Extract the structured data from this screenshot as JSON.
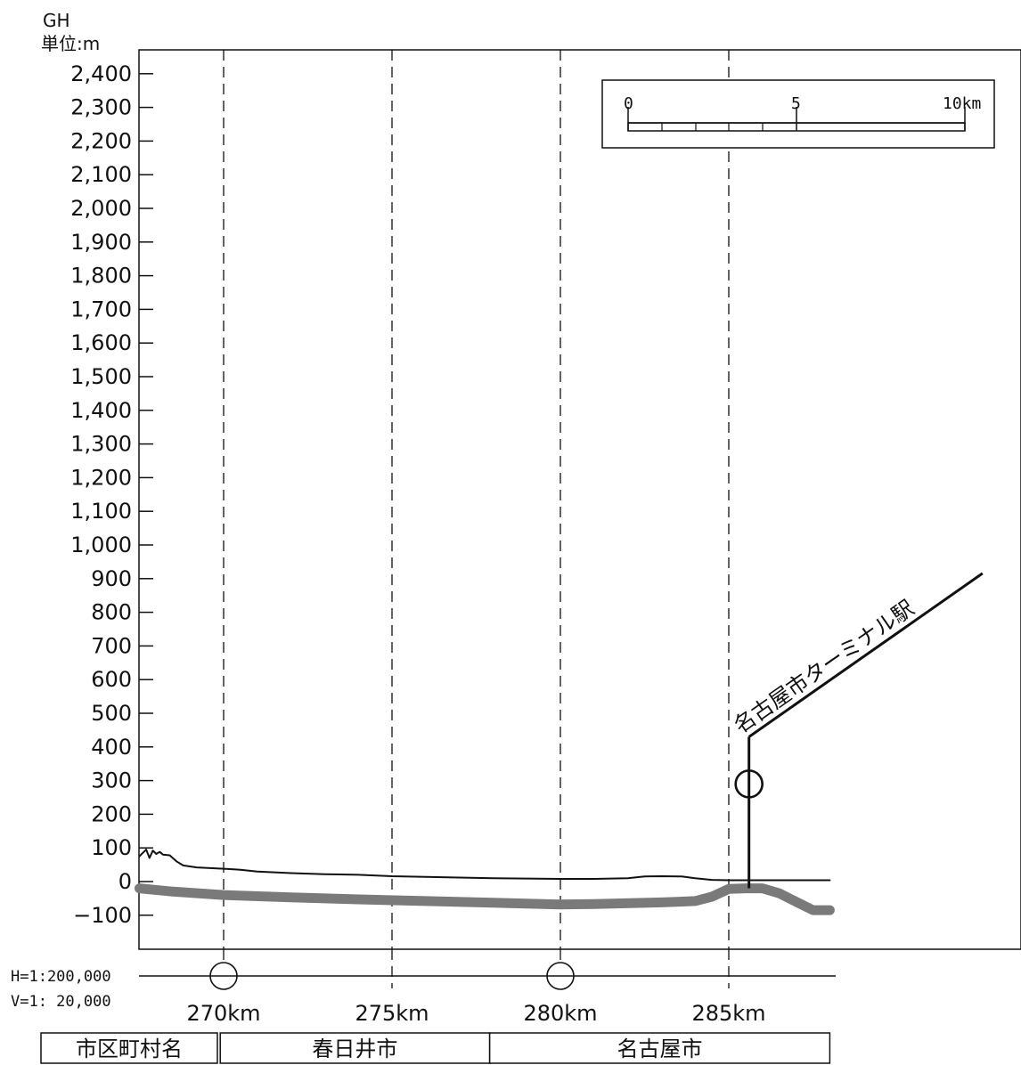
{
  "chart_data": {
    "type": "line",
    "yaxis_title": "GH",
    "yaxis_unit": "単位:m",
    "ylim": [
      -200,
      2500
    ],
    "yticks": [
      {
        "v": 2400,
        "label": "2,400"
      },
      {
        "v": 2300,
        "label": "2,300"
      },
      {
        "v": 2200,
        "label": "2,200"
      },
      {
        "v": 2100,
        "label": "2,100"
      },
      {
        "v": 2000,
        "label": "2,000"
      },
      {
        "v": 1900,
        "label": "1,900"
      },
      {
        "v": 1800,
        "label": "1,800"
      },
      {
        "v": 1700,
        "label": "1,700"
      },
      {
        "v": 1600,
        "label": "1,600"
      },
      {
        "v": 1500,
        "label": "1,500"
      },
      {
        "v": 1400,
        "label": "1,400"
      },
      {
        "v": 1300,
        "label": "1,300"
      },
      {
        "v": 1200,
        "label": "1,200"
      },
      {
        "v": 1100,
        "label": "1,100"
      },
      {
        "v": 1000,
        "label": "1,000"
      },
      {
        "v": 900,
        "label": "900"
      },
      {
        "v": 800,
        "label": "800"
      },
      {
        "v": 700,
        "label": "700"
      },
      {
        "v": 600,
        "label": "600"
      },
      {
        "v": 500,
        "label": "500"
      },
      {
        "v": 400,
        "label": "400"
      },
      {
        "v": 300,
        "label": "300"
      },
      {
        "v": 200,
        "label": "200"
      },
      {
        "v": 100,
        "label": "100"
      },
      {
        "v": 0,
        "label": "0"
      },
      {
        "v": -100,
        "label": "−100"
      }
    ],
    "xlim": [
      267.5,
      288.0
    ],
    "xticks": [
      {
        "v": 270,
        "label": "270km"
      },
      {
        "v": 275,
        "label": "275km"
      },
      {
        "v": 280,
        "label": "280km"
      },
      {
        "v": 285,
        "label": "285km"
      }
    ],
    "series": [
      {
        "role": "ground",
        "color": "#111111",
        "points": [
          [
            267.5,
            75
          ],
          [
            267.7,
            95
          ],
          [
            267.8,
            70
          ],
          [
            267.9,
            92
          ],
          [
            268.0,
            82
          ],
          [
            268.1,
            88
          ],
          [
            268.2,
            80
          ],
          [
            268.4,
            78
          ],
          [
            268.6,
            60
          ],
          [
            268.8,
            48
          ],
          [
            269.2,
            42
          ],
          [
            270.0,
            38
          ],
          [
            270.5,
            35
          ],
          [
            271.0,
            30
          ],
          [
            272.0,
            25
          ],
          [
            273.0,
            22
          ],
          [
            274.0,
            20
          ],
          [
            275.0,
            16
          ],
          [
            276.0,
            14
          ],
          [
            277.0,
            12
          ],
          [
            278.0,
            10
          ],
          [
            279.0,
            9
          ],
          [
            280.0,
            8
          ],
          [
            281.0,
            8
          ],
          [
            282.0,
            10
          ],
          [
            282.5,
            15
          ],
          [
            283.0,
            16
          ],
          [
            283.6,
            15
          ],
          [
            284.0,
            10
          ],
          [
            284.5,
            5
          ],
          [
            285.0,
            4
          ],
          [
            286.0,
            4
          ],
          [
            288.0,
            4
          ]
        ]
      },
      {
        "role": "track",
        "color": "#7a7a7a",
        "points": [
          [
            267.5,
            -20
          ],
          [
            268.5,
            -30
          ],
          [
            270.0,
            -40
          ],
          [
            272.0,
            -47
          ],
          [
            274.0,
            -53
          ],
          [
            276.0,
            -58
          ],
          [
            278.0,
            -63
          ],
          [
            280.0,
            -68
          ],
          [
            281.0,
            -67
          ],
          [
            283.0,
            -62
          ],
          [
            284.0,
            -58
          ],
          [
            284.5,
            -45
          ],
          [
            285.0,
            -22
          ],
          [
            285.5,
            -20
          ],
          [
            286.0,
            -20
          ],
          [
            286.5,
            -35
          ],
          [
            287.0,
            -60
          ],
          [
            287.5,
            -85
          ],
          [
            288.0,
            -85
          ]
        ]
      }
    ],
    "stations": [
      {
        "km": 270.0,
        "type": "circle",
        "position": "axis"
      },
      {
        "km": 280.0,
        "type": "circle",
        "position": "axis"
      },
      {
        "km": 285.6,
        "type": "terminal",
        "name": "名古屋市ターミナル駅",
        "circle_elev": 290,
        "top_elev": 430
      }
    ],
    "scale_bar": {
      "labels": [
        "0",
        "5",
        "10km"
      ],
      "length_km": 10
    },
    "scale_notes": {
      "h": "H=1:200,000",
      "v": "V=1: 20,000"
    },
    "municipalities": {
      "header": "市区町村名",
      "segments": [
        {
          "name": "春日井市",
          "from": 269.9,
          "to": 277.9
        },
        {
          "name": "名古屋市",
          "from": 277.9,
          "to": 288.0
        }
      ]
    },
    "grid": {
      "vertical_dashed": [
        270,
        275,
        280,
        285
      ]
    },
    "legend": "none"
  }
}
